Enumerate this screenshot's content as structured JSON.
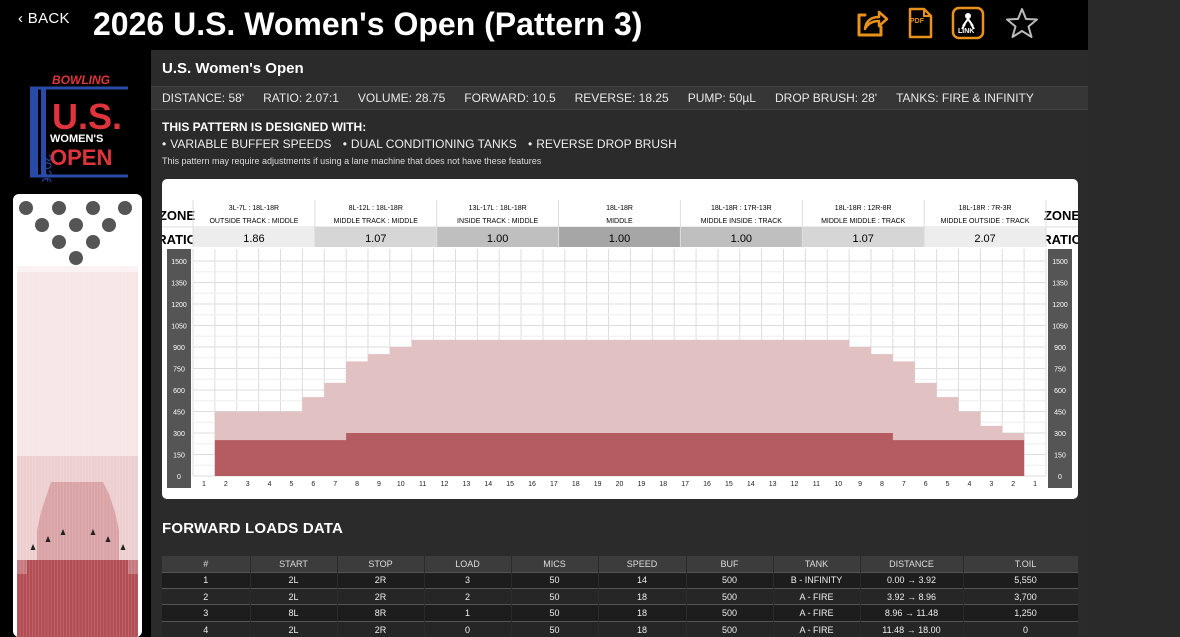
{
  "header": {
    "back_label": "BACK",
    "title": "2026 U.S. Women's Open (Pattern 3)",
    "icons": [
      "share-icon",
      "pdf-icon",
      "link-icon",
      "star-icon"
    ],
    "pdf_text": "PDF",
    "link_text": "LINK",
    "accent": "#e8921c"
  },
  "logo": {
    "top": "BOWLING",
    "us": "U.S.",
    "year": "2026",
    "line1": "WOMEN'S",
    "line2": "OPEN"
  },
  "pattern": {
    "name": "U.S. Women's Open",
    "specs": [
      "DISTANCE: 58'",
      "RATIO: 2.07:1",
      "VOLUME: 28.75",
      "FORWARD: 10.5",
      "REVERSE: 18.25",
      "PUMP: 50µL",
      "DROP BRUSH: 28'",
      "TANKS: FIRE & INFINITY"
    ],
    "design_title": "THIS PATTERN IS DESIGNED WITH:",
    "features": [
      "VARIABLE BUFFER SPEEDS",
      "DUAL CONDITIONING TANKS",
      "REVERSE DROP BRUSH"
    ],
    "note": "This pattern may require adjustments if using a lane machine that does not have these features"
  },
  "chart_data": {
    "type": "area",
    "zone_label": "ZONE",
    "ratio_label": "RATIO",
    "zones": [
      {
        "top": "3L-7L : 18L-18R",
        "bottom": "OUTSIDE TRACK : MIDDLE",
        "ratio": "1.86",
        "shade": "#ededed"
      },
      {
        "top": "8L-12L : 18L-18R",
        "bottom": "MIDDLE TRACK : MIDDLE",
        "ratio": "1.07",
        "shade": "#d6d6d6"
      },
      {
        "top": "13L-17L : 18L-18R",
        "bottom": "INSIDE TRACK : MIDDLE",
        "ratio": "1.00",
        "shade": "#bfbfbf"
      },
      {
        "top": "18L-18R",
        "bottom": "MIDDLE",
        "ratio": "1.00",
        "shade": "#a6a6a6"
      },
      {
        "top": "18L-18R : 17R-13R",
        "bottom": "MIDDLE INSIDE : TRACK",
        "ratio": "1.00",
        "shade": "#bfbfbf"
      },
      {
        "top": "18L-18R : 12R-8R",
        "bottom": "MIDDLE MIDDLE : TRACK",
        "ratio": "1.07",
        "shade": "#d6d6d6"
      },
      {
        "top": "18L-18R : 7R-3R",
        "bottom": "MIDDLE OUTSIDE : TRACK",
        "ratio": "2.07",
        "shade": "#ededed"
      }
    ],
    "y_ticks": [
      0,
      150,
      300,
      450,
      600,
      750,
      900,
      1050,
      1200,
      1350,
      1500
    ],
    "ylim": [
      0,
      1500
    ],
    "x_labels": [
      "1",
      "2",
      "3",
      "4",
      "5",
      "6",
      "7",
      "8",
      "9",
      "10",
      "11",
      "12",
      "13",
      "14",
      "15",
      "16",
      "17",
      "18",
      "19",
      "20",
      "19",
      "18",
      "17",
      "16",
      "15",
      "14",
      "13",
      "12",
      "11",
      "10",
      "9",
      "8",
      "7",
      "6",
      "5",
      "4",
      "3",
      "2",
      "1"
    ],
    "series": [
      {
        "values": [
          0,
          450,
          450,
          450,
          450,
          550,
          650,
          800,
          850,
          900,
          950,
          950,
          950,
          950,
          950,
          950,
          950,
          950,
          950,
          950,
          950,
          950,
          950,
          950,
          950,
          950,
          950,
          950,
          950,
          950,
          900,
          850,
          800,
          650,
          550,
          450,
          350,
          300,
          0
        ],
        "color": "#e2c1c3"
      },
      {
        "values": [
          0,
          250,
          250,
          250,
          250,
          250,
          250,
          300,
          300,
          300,
          300,
          300,
          300,
          300,
          300,
          300,
          300,
          300,
          300,
          300,
          300,
          300,
          300,
          300,
          300,
          300,
          300,
          300,
          300,
          300,
          300,
          300,
          250,
          250,
          250,
          250,
          250,
          250,
          0
        ],
        "color": "#b45c62"
      }
    ],
    "grid": true
  },
  "lane": {
    "arrows_count": 6,
    "colors": {
      "light": "#f6e6e6",
      "mid": "#d9a3a6",
      "dark": "#b24e54"
    }
  },
  "forward_loads": {
    "title": "FORWARD LOADS DATA",
    "columns": [
      "#",
      "START",
      "STOP",
      "LOAD",
      "MICS",
      "SPEED",
      "BUF",
      "TANK",
      "DISTANCE",
      "T.OIL"
    ],
    "rows": [
      [
        "1",
        "2L",
        "2R",
        "3",
        "50",
        "14",
        "500",
        "B - INFINITY",
        "0.00 → 3.92",
        "5,550"
      ],
      [
        "2",
        "2L",
        "2R",
        "2",
        "50",
        "18",
        "500",
        "A - FIRE",
        "3.92 → 8.96",
        "3,700"
      ],
      [
        "3",
        "8L",
        "8R",
        "1",
        "50",
        "18",
        "500",
        "A - FIRE",
        "8.96 → 11.48",
        "1,250"
      ],
      [
        "4",
        "2L",
        "2R",
        "0",
        "50",
        "18",
        "500",
        "A - FIRE",
        "11.48 → 18.00",
        "0"
      ]
    ]
  }
}
